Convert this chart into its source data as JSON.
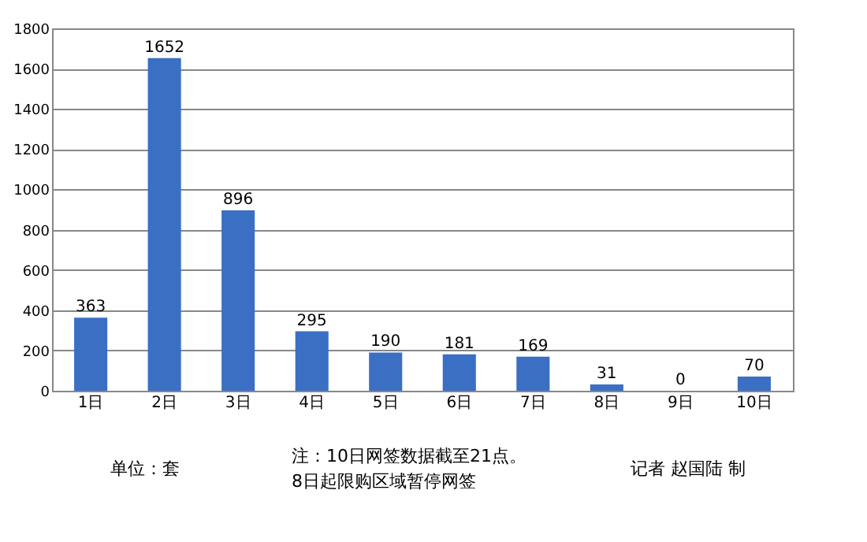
{
  "chart_data": {
    "type": "bar",
    "categories": [
      "1日",
      "2日",
      "3日",
      "4日",
      "5日",
      "6日",
      "7日",
      "8日",
      "9日",
      "10日"
    ],
    "values": [
      363,
      1652,
      896,
      295,
      190,
      181,
      169,
      31,
      0,
      70
    ],
    "color": "#3a6fc4",
    "ylim": [
      0,
      1800
    ],
    "yticks": [
      0,
      200,
      400,
      600,
      800,
      1000,
      1200,
      1400,
      1600,
      1800
    ],
    "grid": "y",
    "data_labels": true,
    "annotations": [
      "单位：套",
      "注：10日网签数据截至21点。",
      "8日起限购区域暂停网签",
      "记者 赵国陆 制"
    ]
  }
}
